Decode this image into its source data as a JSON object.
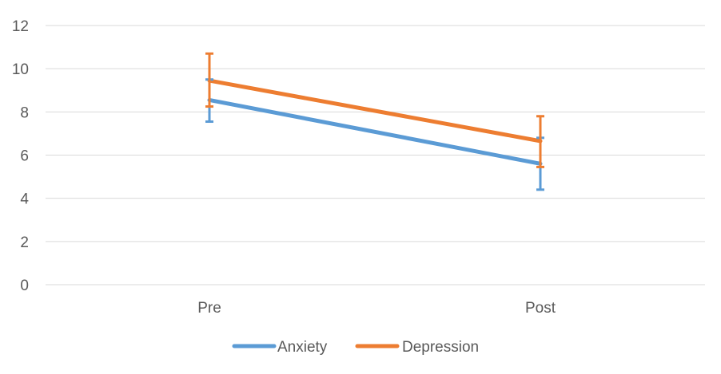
{
  "chart_data": {
    "type": "line",
    "categories": [
      "Pre",
      "Post"
    ],
    "ylim": [
      0,
      12
    ],
    "yticks": [
      0,
      2,
      4,
      6,
      8,
      10,
      12
    ],
    "grid": true,
    "legend_position": "bottom",
    "series": [
      {
        "name": "Anxiety",
        "color": "#5B9BD5",
        "values": [
          8.55,
          5.6
        ],
        "error_low": [
          7.55,
          4.4
        ],
        "error_high": [
          9.5,
          6.8
        ]
      },
      {
        "name": "Depression",
        "color": "#ED7D31",
        "values": [
          9.45,
          6.65
        ],
        "error_low": [
          8.25,
          5.45
        ],
        "error_high": [
          10.7,
          7.8
        ]
      }
    ]
  }
}
